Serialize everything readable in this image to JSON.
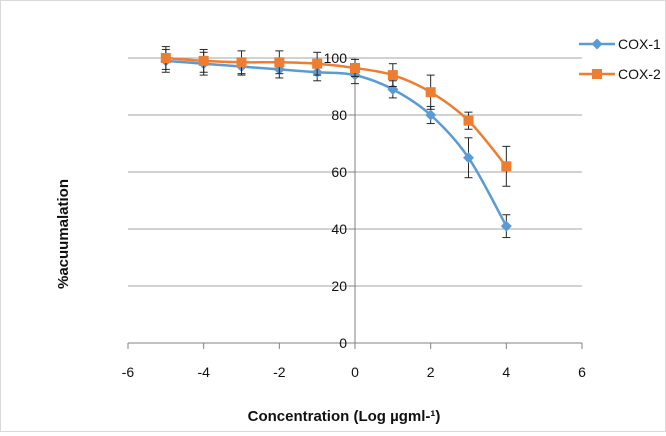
{
  "chart_data": {
    "type": "line",
    "title": "",
    "xlabel": "Concentration (Log µgml-¹)",
    "ylabel": "%acuumalation",
    "xlim": [
      -6,
      6
    ],
    "ylim": [
      0,
      100
    ],
    "x_ticks": [
      -6,
      -4,
      -2,
      0,
      2,
      4,
      6
    ],
    "y_ticks": [
      0,
      20,
      40,
      60,
      80,
      100
    ],
    "grid": "horizontal",
    "legend_position": "top-right",
    "series": [
      {
        "name": "COX-1",
        "color": "#5b9bd5",
        "marker": "diamond",
        "x": [
          -5,
          -4,
          -3,
          -2,
          -1,
          0,
          1,
          2,
          3,
          4
        ],
        "y": [
          99,
          98,
          97,
          96,
          95,
          94,
          89,
          80,
          65,
          41
        ],
        "error": [
          4,
          4,
          3,
          3,
          3,
          3,
          3,
          3,
          7,
          4
        ]
      },
      {
        "name": "COX-2",
        "color": "#ed7d31",
        "marker": "square",
        "x": [
          -5,
          -4,
          -3,
          -2,
          -1,
          0,
          1,
          2,
          3,
          4
        ],
        "y": [
          100,
          99,
          98.5,
          98.5,
          98,
          96.5,
          94,
          88,
          78,
          62
        ],
        "error": [
          4,
          4,
          4,
          4,
          4,
          3,
          4,
          6,
          3,
          7
        ]
      }
    ]
  }
}
